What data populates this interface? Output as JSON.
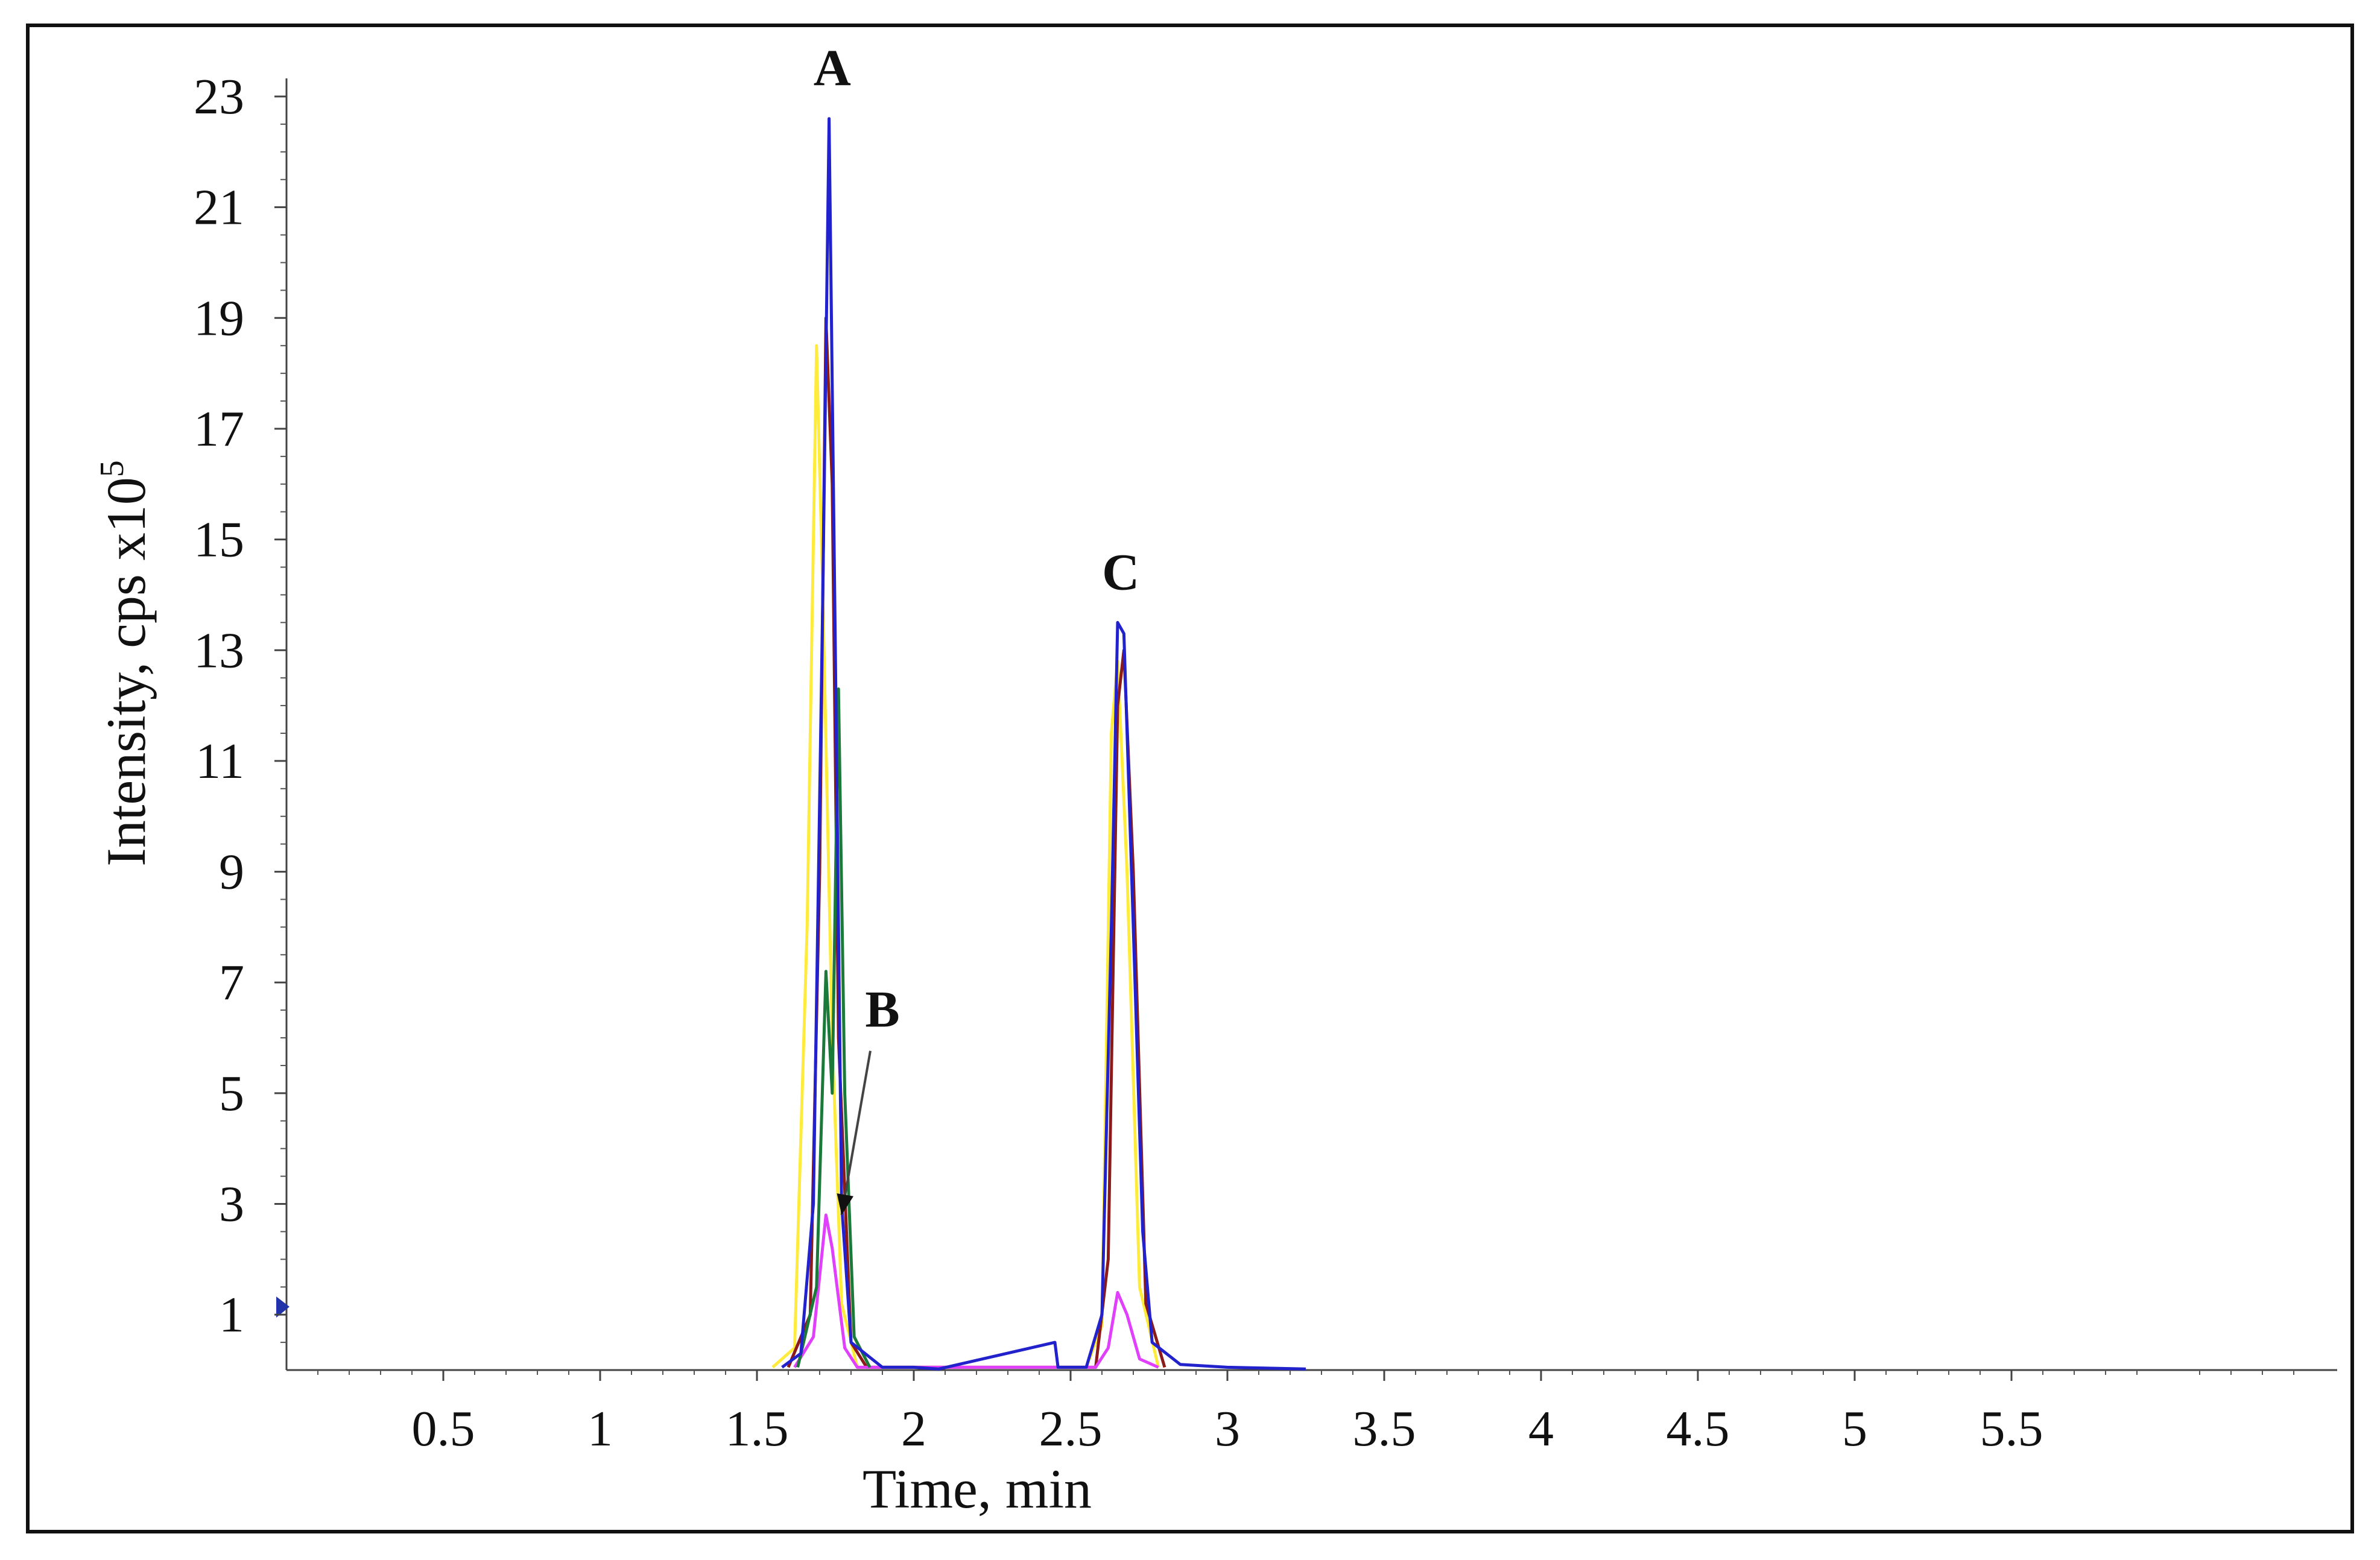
{
  "chart_data": {
    "type": "line",
    "title": "",
    "xlabel": "Time, min",
    "ylabel": "Intensity, cps x10",
    "ylabel_superscript": "5",
    "xlim": [
      0,
      6.5
    ],
    "ylim": [
      0,
      23
    ],
    "grid": false,
    "legend": "none",
    "x_ticks": [
      "0.5",
      "1",
      "1.5",
      "2",
      "2.5",
      "3",
      "3.5",
      "4",
      "4.5",
      "5",
      "5.5"
    ],
    "x_tick_values": [
      0.5,
      1,
      1.5,
      2,
      2.5,
      3,
      3.5,
      4,
      4.5,
      5,
      5.5
    ],
    "y_ticks": [
      "1",
      "3",
      "5",
      "7",
      "9",
      "11",
      "13",
      "15",
      "17",
      "19",
      "21",
      "23"
    ],
    "y_tick_values": [
      1,
      3,
      5,
      7,
      9,
      11,
      13,
      15,
      17,
      19,
      21,
      23
    ],
    "series": [
      {
        "color": "#FFEB3B",
        "points": [
          [
            1.55,
            0.05
          ],
          [
            1.62,
            0.4
          ],
          [
            1.66,
            8
          ],
          [
            1.69,
            18.5
          ],
          [
            1.71,
            14
          ],
          [
            1.74,
            6
          ],
          [
            1.77,
            1.2
          ],
          [
            1.82,
            0.05
          ],
          [
            2.55,
            0.05
          ],
          [
            2.6,
            0.8
          ],
          [
            2.63,
            11.5
          ],
          [
            2.65,
            12.8
          ],
          [
            2.68,
            9
          ],
          [
            2.72,
            1.5
          ],
          [
            2.78,
            0.05
          ]
        ]
      },
      {
        "color": "#8B1A1A",
        "points": [
          [
            1.6,
            0.05
          ],
          [
            1.67,
            1
          ],
          [
            1.7,
            9
          ],
          [
            1.72,
            19
          ],
          [
            1.74,
            16
          ],
          [
            1.76,
            6
          ],
          [
            1.8,
            0.5
          ],
          [
            1.85,
            0.05
          ],
          [
            2.58,
            0.05
          ],
          [
            2.62,
            2
          ],
          [
            2.65,
            12
          ],
          [
            2.67,
            13
          ],
          [
            2.7,
            9
          ],
          [
            2.74,
            1.2
          ],
          [
            2.8,
            0.05
          ]
        ]
      },
      {
        "color": "#E040FB",
        "points": [
          [
            1.62,
            0.05
          ],
          [
            1.68,
            0.6
          ],
          [
            1.72,
            2.8
          ],
          [
            1.74,
            2.2
          ],
          [
            1.78,
            0.4
          ],
          [
            1.82,
            0.05
          ],
          [
            2.58,
            0.05
          ],
          [
            2.62,
            0.4
          ],
          [
            2.65,
            1.4
          ],
          [
            2.68,
            1
          ],
          [
            2.72,
            0.2
          ],
          [
            2.78,
            0.05
          ]
        ]
      },
      {
        "color": "#1B7A3A",
        "points": [
          [
            1.63,
            0.05
          ],
          [
            1.69,
            1.5
          ],
          [
            1.72,
            7.2
          ],
          [
            1.74,
            5
          ],
          [
            1.76,
            12.3
          ],
          [
            1.78,
            5
          ],
          [
            1.81,
            0.6
          ],
          [
            1.86,
            0.05
          ]
        ]
      },
      {
        "color": "#2222CC",
        "points": [
          [
            1.58,
            0.05
          ],
          [
            1.64,
            0.3
          ],
          [
            1.68,
            3
          ],
          [
            1.71,
            14
          ],
          [
            1.73,
            22.6
          ],
          [
            1.75,
            13
          ],
          [
            1.77,
            3
          ],
          [
            1.8,
            0.5
          ],
          [
            1.9,
            0.05
          ],
          [
            2.0,
            0.05
          ],
          [
            2.08,
            0.02
          ],
          [
            2.45,
            0.5
          ],
          [
            2.46,
            0.05
          ],
          [
            2.55,
            0.05
          ],
          [
            2.6,
            1
          ],
          [
            2.63,
            8
          ],
          [
            2.65,
            13.5
          ],
          [
            2.67,
            13.3
          ],
          [
            2.7,
            8
          ],
          [
            2.73,
            2.5
          ],
          [
            2.76,
            0.5
          ],
          [
            2.85,
            0.1
          ],
          [
            3.0,
            0.05
          ],
          [
            3.25,
            0.02
          ]
        ]
      }
    ],
    "annotations": [
      {
        "text": "A",
        "x": 1.74,
        "y": 23.2
      },
      {
        "text": "B",
        "x": 1.9,
        "y": 6.2,
        "arrow_to": [
          1.77,
          2.8
        ]
      },
      {
        "text": "C",
        "x": 2.66,
        "y": 14.1
      }
    ]
  }
}
